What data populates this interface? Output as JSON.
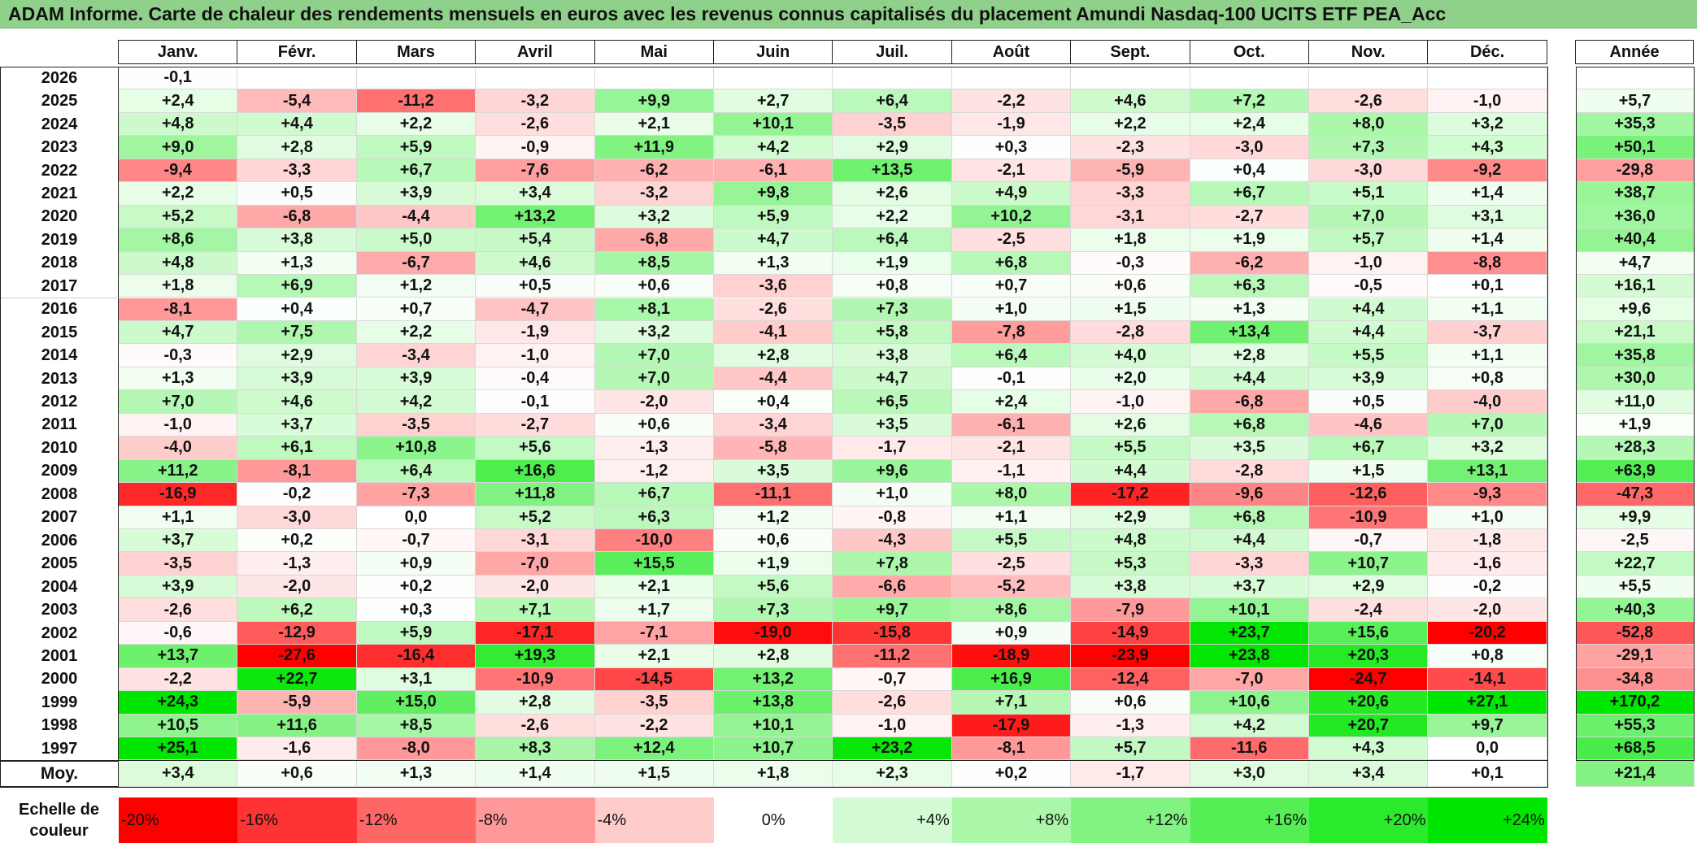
{
  "title": "ADAM Informe. Carte de chaleur des rendements mensuels en euros avec les revenus connus capitalisés du placement Amundi Nasdaq-100 UCITS ETF PEA_Acc",
  "chart_data": {
    "type": "heatmap",
    "columns": [
      "Janv.",
      "Févr.",
      "Mars",
      "Avril",
      "Mai",
      "Juin",
      "Juil.",
      "Août",
      "Sept.",
      "Oct.",
      "Nov.",
      "Déc."
    ],
    "annual_header": "Année",
    "rows": [
      {
        "year": "2026",
        "values": [
          "-0,1",
          "",
          "",
          "",
          "",
          "",
          "",
          "",
          "",
          "",
          "",
          ""
        ],
        "annual": ""
      },
      {
        "year": "2025",
        "values": [
          "+2,4",
          "-5,4",
          "-11,2",
          "-3,2",
          "+9,9",
          "+2,7",
          "+6,4",
          "-2,2",
          "+4,6",
          "+7,2",
          "-2,6",
          "-1,0"
        ],
        "annual": "+5,7"
      },
      {
        "year": "2024",
        "values": [
          "+4,8",
          "+4,4",
          "+2,2",
          "-2,6",
          "+2,1",
          "+10,1",
          "-3,5",
          "-1,9",
          "+2,2",
          "+2,4",
          "+8,0",
          "+3,2"
        ],
        "annual": "+35,3"
      },
      {
        "year": "2023",
        "values": [
          "+9,0",
          "+2,8",
          "+5,9",
          "-0,9",
          "+11,9",
          "+4,2",
          "+2,9",
          "+0,3",
          "-2,3",
          "-3,0",
          "+7,3",
          "+4,3"
        ],
        "annual": "+50,1"
      },
      {
        "year": "2022",
        "values": [
          "-9,4",
          "-3,3",
          "+6,7",
          "-7,6",
          "-6,2",
          "-6,1",
          "+13,5",
          "-2,1",
          "-5,9",
          "+0,4",
          "-3,0",
          "-9,2"
        ],
        "annual": "-29,8"
      },
      {
        "year": "2021",
        "values": [
          "+2,2",
          "+0,5",
          "+3,9",
          "+3,4",
          "-3,2",
          "+9,8",
          "+2,6",
          "+4,9",
          "-3,3",
          "+6,7",
          "+5,1",
          "+1,4"
        ],
        "annual": "+38,7"
      },
      {
        "year": "2020",
        "values": [
          "+5,2",
          "-6,8",
          "-4,4",
          "+13,2",
          "+3,2",
          "+5,9",
          "+2,2",
          "+10,2",
          "-3,1",
          "-2,7",
          "+7,0",
          "+3,1"
        ],
        "annual": "+36,0"
      },
      {
        "year": "2019",
        "values": [
          "+8,6",
          "+3,8",
          "+5,0",
          "+5,4",
          "-6,8",
          "+4,7",
          "+6,4",
          "-2,5",
          "+1,8",
          "+1,9",
          "+5,7",
          "+1,4"
        ],
        "annual": "+40,4"
      },
      {
        "year": "2018",
        "values": [
          "+4,8",
          "+1,3",
          "-6,7",
          "+4,6",
          "+8,5",
          "+1,3",
          "+1,9",
          "+6,8",
          "-0,3",
          "-6,2",
          "-1,0",
          "-8,8"
        ],
        "annual": "+4,7"
      },
      {
        "year": "2017",
        "values": [
          "+1,8",
          "+6,9",
          "+1,2",
          "+0,5",
          "+0,6",
          "-3,6",
          "+0,8",
          "+0,7",
          "+0,6",
          "+6,3",
          "-0,5",
          "+0,1"
        ],
        "annual": "+16,1"
      },
      {
        "year": "2016",
        "values": [
          "-8,1",
          "+0,4",
          "+0,7",
          "-4,7",
          "+8,1",
          "-2,6",
          "+7,3",
          "+1,0",
          "+1,5",
          "+1,3",
          "+4,4",
          "+1,1"
        ],
        "annual": "+9,6"
      },
      {
        "year": "2015",
        "values": [
          "+4,7",
          "+7,5",
          "+2,2",
          "-1,9",
          "+3,2",
          "-4,1",
          "+5,8",
          "-7,8",
          "-2,8",
          "+13,4",
          "+4,4",
          "-3,7"
        ],
        "annual": "+21,1"
      },
      {
        "year": "2014",
        "values": [
          "-0,3",
          "+2,9",
          "-3,4",
          "-1,0",
          "+7,0",
          "+2,8",
          "+3,8",
          "+6,4",
          "+4,0",
          "+2,8",
          "+5,5",
          "+1,1"
        ],
        "annual": "+35,8"
      },
      {
        "year": "2013",
        "values": [
          "+1,3",
          "+3,9",
          "+3,9",
          "-0,4",
          "+7,0",
          "-4,4",
          "+4,7",
          "-0,1",
          "+2,0",
          "+4,4",
          "+3,9",
          "+0,8"
        ],
        "annual": "+30,0"
      },
      {
        "year": "2012",
        "values": [
          "+7,0",
          "+4,6",
          "+4,2",
          "-0,1",
          "-2,0",
          "+0,4",
          "+6,5",
          "+2,4",
          "-1,0",
          "-6,8",
          "+0,5",
          "-4,0"
        ],
        "annual": "+11,0"
      },
      {
        "year": "2011",
        "values": [
          "-1,0",
          "+3,7",
          "-3,5",
          "-2,7",
          "+0,6",
          "-3,4",
          "+3,5",
          "-6,1",
          "+2,6",
          "+6,8",
          "-4,6",
          "+7,0"
        ],
        "annual": "+1,9"
      },
      {
        "year": "2010",
        "values": [
          "-4,0",
          "+6,1",
          "+10,8",
          "+5,6",
          "-1,3",
          "-5,8",
          "-1,7",
          "-2,1",
          "+5,5",
          "+3,5",
          "+6,7",
          "+3,2"
        ],
        "annual": "+28,3"
      },
      {
        "year": "2009",
        "values": [
          "+11,2",
          "-8,1",
          "+6,4",
          "+16,6",
          "-1,2",
          "+3,5",
          "+9,6",
          "-1,1",
          "+4,4",
          "-2,8",
          "+1,5",
          "+13,1"
        ],
        "annual": "+63,9"
      },
      {
        "year": "2008",
        "values": [
          "-16,9",
          "-0,2",
          "-7,3",
          "+11,8",
          "+6,7",
          "-11,1",
          "+1,0",
          "+8,0",
          "-17,2",
          "-9,6",
          "-12,6",
          "-9,3"
        ],
        "annual": "-47,3"
      },
      {
        "year": "2007",
        "values": [
          "+1,1",
          "-3,0",
          "0,0",
          "+5,2",
          "+6,3",
          "+1,2",
          "-0,8",
          "+1,1",
          "+2,9",
          "+6,8",
          "-10,9",
          "+1,0"
        ],
        "annual": "+9,9"
      },
      {
        "year": "2006",
        "values": [
          "+3,7",
          "+0,2",
          "-0,7",
          "-3,1",
          "-10,0",
          "+0,6",
          "-4,3",
          "+5,5",
          "+4,8",
          "+4,4",
          "-0,7",
          "-1,8"
        ],
        "annual": "-2,5"
      },
      {
        "year": "2005",
        "values": [
          "-3,5",
          "-1,3",
          "+0,9",
          "-7,0",
          "+15,5",
          "+1,9",
          "+7,8",
          "-2,5",
          "+5,3",
          "-3,3",
          "+10,7",
          "-1,6"
        ],
        "annual": "+22,7"
      },
      {
        "year": "2004",
        "values": [
          "+3,9",
          "-2,0",
          "+0,2",
          "-2,0",
          "+2,1",
          "+5,6",
          "-6,6",
          "-5,2",
          "+3,8",
          "+3,7",
          "+2,9",
          "-0,2"
        ],
        "annual": "+5,5"
      },
      {
        "year": "2003",
        "values": [
          "-2,6",
          "+6,2",
          "+0,3",
          "+7,1",
          "+1,7",
          "+7,3",
          "+9,7",
          "+8,6",
          "-7,9",
          "+10,1",
          "-2,4",
          "-2,0"
        ],
        "annual": "+40,3"
      },
      {
        "year": "2002",
        "values": [
          "-0,6",
          "-12,9",
          "+5,9",
          "-17,1",
          "-7,1",
          "-19,0",
          "-15,8",
          "+0,9",
          "-14,9",
          "+23,7",
          "+15,6",
          "-20,2"
        ],
        "annual": "-52,8"
      },
      {
        "year": "2001",
        "values": [
          "+13,7",
          "-27,6",
          "-16,4",
          "+19,3",
          "+2,1",
          "+2,8",
          "-11,2",
          "-18,9",
          "-23,9",
          "+23,8",
          "+20,3",
          "+0,8"
        ],
        "annual": "-29,1"
      },
      {
        "year": "2000",
        "values": [
          "-2,2",
          "+22,7",
          "+3,1",
          "-10,9",
          "-14,5",
          "+13,2",
          "-0,7",
          "+16,9",
          "-12,4",
          "-7,0",
          "-24,7",
          "-14,1"
        ],
        "annual": "-34,8"
      },
      {
        "year": "1999",
        "values": [
          "+24,3",
          "-5,9",
          "+15,0",
          "+2,8",
          "-3,5",
          "+13,8",
          "-2,6",
          "+7,1",
          "+0,6",
          "+10,6",
          "+20,6",
          "+27,1"
        ],
        "annual": "+170,2"
      },
      {
        "year": "1998",
        "values": [
          "+10,5",
          "+11,6",
          "+8,5",
          "-2,6",
          "-2,2",
          "+10,1",
          "-1,0",
          "-17,9",
          "-1,3",
          "+4,2",
          "+20,7",
          "+9,7"
        ],
        "annual": "+55,3"
      },
      {
        "year": "1997",
        "values": [
          "+25,1",
          "-1,6",
          "-8,0",
          "+8,3",
          "+12,4",
          "+10,7",
          "+23,2",
          "-8,1",
          "+5,7",
          "-11,6",
          "+4,3",
          "0,0"
        ],
        "annual": "+68,5"
      }
    ],
    "average": {
      "label": "Moy.",
      "values": [
        "+3,4",
        "+0,6",
        "+1,3",
        "+1,4",
        "+1,5",
        "+1,8",
        "+2,3",
        "+0,2",
        "-1,7",
        "+3,0",
        "+3,4",
        "+0,1"
      ],
      "annual": "+21,4"
    }
  },
  "color_scale": {
    "label": "Echelle de\ncouleur",
    "steps": [
      {
        "label": "-20%",
        "value": -20
      },
      {
        "label": "-16%",
        "value": -16
      },
      {
        "label": "-12%",
        "value": -12
      },
      {
        "label": "-8%",
        "value": -8
      },
      {
        "label": "-4%",
        "value": -4
      },
      {
        "label": "0%",
        "value": 0
      },
      {
        "label": "+4%",
        "value": 4
      },
      {
        "label": "+8%",
        "value": 8
      },
      {
        "label": "+12%",
        "value": 12
      },
      {
        "label": "+16%",
        "value": 16
      },
      {
        "label": "+20%",
        "value": 20
      },
      {
        "label": "+24%",
        "value": 24
      }
    ],
    "negative_color": "#ff0000",
    "positive_color": "#00e600",
    "neutral_color": "#ffffff"
  }
}
